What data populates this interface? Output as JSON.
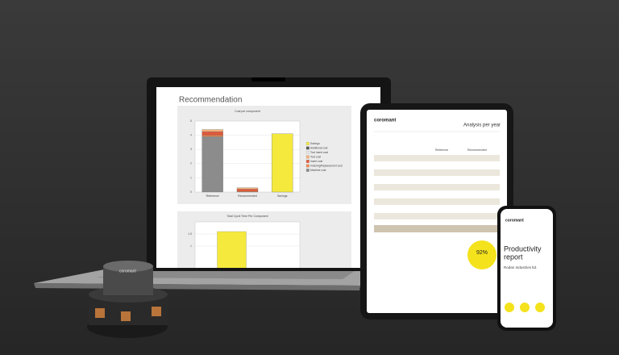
{
  "laptop": {
    "title": "Recommendation"
  },
  "chart_data": [
    {
      "type": "stacked-bar",
      "title": "Cost per component",
      "categories": [
        "Reference",
        "Recommended",
        "Savings"
      ],
      "ylim": [
        0,
        5
      ],
      "yticks": [
        0,
        1,
        2,
        3,
        4,
        5
      ],
      "grid": true,
      "series": [
        {
          "name": "Savings",
          "color": "#f4e93c",
          "values": [
            null,
            null,
            4.1
          ]
        },
        {
          "name": "Additional cost",
          "color": "#5a5a5a",
          "values": [
            null,
            null,
            null
          ]
        },
        {
          "name": "Tool insert cost",
          "color": "#e8e8e8",
          "values": [
            null,
            null,
            null
          ]
        },
        {
          "name": "Tool cost",
          "color": "#f3b07a",
          "values": [
            0.15,
            0.1,
            null
          ]
        },
        {
          "name": "Insert cost",
          "color": "#e2593b",
          "values": [
            0.25,
            0.15,
            null
          ]
        },
        {
          "name": "Indexing/Replacement cost",
          "color": "#f08a4b",
          "values": [
            0.1,
            0.05,
            null
          ]
        },
        {
          "name": "Machine cost",
          "color": "#8c8c8c",
          "values": [
            3.9,
            null,
            null
          ]
        }
      ]
    },
    {
      "type": "bar",
      "title": "Total Cycle Time Per Component",
      "categories": [
        null
      ],
      "values": [
        1.6
      ],
      "color": "#f4e93c",
      "ylim": [
        0,
        2
      ],
      "yticks": [
        1,
        1.5
      ],
      "grid": true
    }
  ],
  "tablet": {
    "brand": "coromant",
    "title": "Analysis per year",
    "columns": [
      "Reference",
      "Recommended"
    ],
    "badge": "92%"
  },
  "phone": {
    "brand": "coromant",
    "title_line1": "Productivity",
    "title_line2": "report",
    "company": "Rodan Industries ltd."
  },
  "tool": {
    "brand": "coromant"
  }
}
